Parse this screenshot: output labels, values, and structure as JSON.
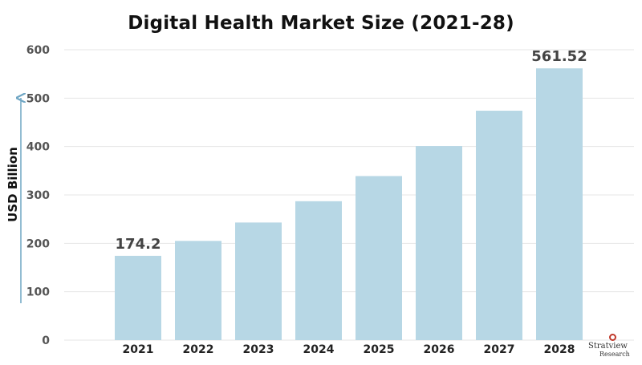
{
  "chart_data": {
    "type": "bar",
    "title": "Digital Health Market Size (2021-28)",
    "ylabel": "USD Billion",
    "xlabel": "",
    "categories": [
      "2021",
      "2022",
      "2023",
      "2024",
      "2025",
      "2026",
      "2027",
      "2028"
    ],
    "values": [
      174.2,
      205,
      243,
      287,
      339,
      401,
      474,
      561.52
    ],
    "data_labels": [
      {
        "index": 0,
        "text": "174.2"
      },
      {
        "index": 7,
        "text": "561.52"
      }
    ],
    "ylim": [
      0,
      600
    ],
    "yticks": [
      "0",
      "100",
      "200",
      "300",
      "400",
      "500",
      "600"
    ],
    "grid": true,
    "bar_color": "#b7d7e5",
    "grid_color": "#e6e6e6"
  },
  "brand": {
    "name": "Stratview",
    "sub": "Research"
  }
}
